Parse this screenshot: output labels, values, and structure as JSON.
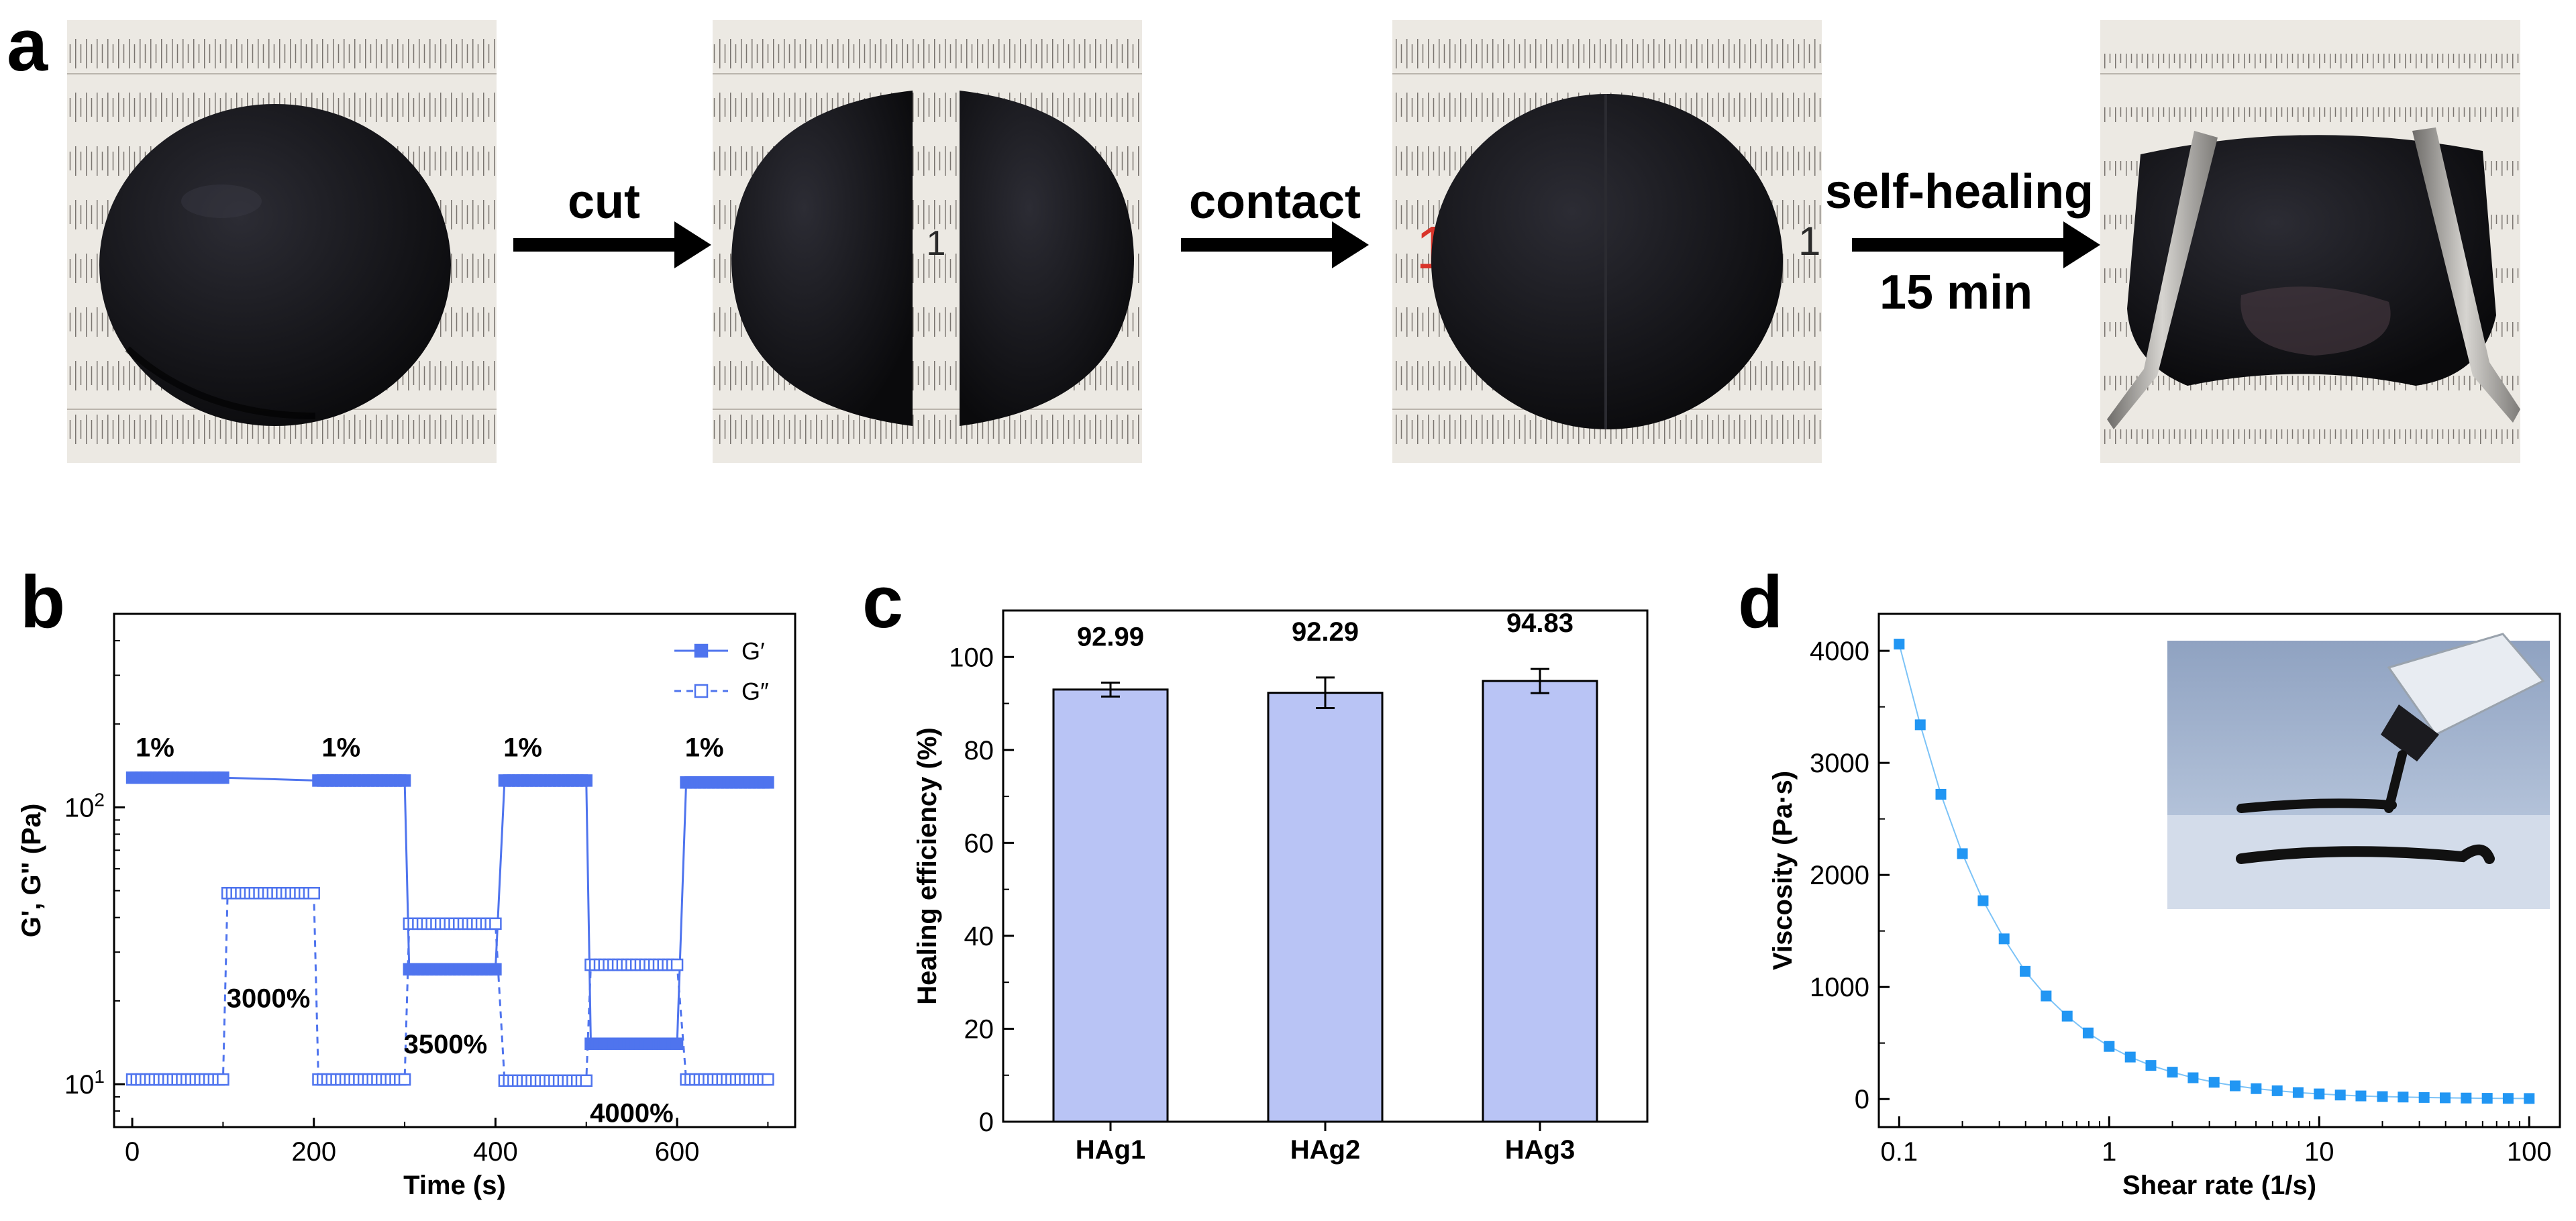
{
  "panel_a": {
    "letter": "a",
    "arrows": [
      {
        "lines": [
          "cut"
        ]
      },
      {
        "lines": [
          "contact"
        ]
      },
      {
        "lines": [
          "self-healing",
          "15 min"
        ]
      }
    ],
    "photos": [
      {
        "desc": "whole-disc-photo",
        "ruler_mark": ""
      },
      {
        "desc": "cut-halves-photo",
        "ruler_mark": "1"
      },
      {
        "desc": "rejoined-disc-photo",
        "ruler_mark": "1"
      },
      {
        "desc": "stretched-healed-photo",
        "ruler_mark": ""
      }
    ],
    "colors": {
      "hydrogel": "#141418",
      "ruler": "#ece9e3",
      "tweezer": "#8c8a86"
    }
  },
  "chart_data": [
    {
      "panel": "b",
      "type": "line",
      "xlabel": "Time (s)",
      "ylabel": "G', G\" (Pa)",
      "xlim": [
        -20,
        730
      ],
      "xticks": [
        "0",
        "200",
        "400",
        "600"
      ],
      "yscale": "log",
      "ylim": [
        7,
        500
      ],
      "yticks": [
        "10¹",
        "10²"
      ],
      "legend": "top-right",
      "series": [
        {
          "name": "G′",
          "style": "solid-filled-square",
          "color": "#4f74ee",
          "segments": [
            {
              "t": [
                0,
                100
              ],
              "value": 128
            },
            {
              "t": [
                205,
                300
              ],
              "value": 125
            },
            {
              "t": [
                305,
                400
              ],
              "value": 26
            },
            {
              "t": [
                410,
                500
              ],
              "value": 125
            },
            {
              "t": [
                505,
                600
              ],
              "value": 14
            },
            {
              "t": [
                610,
                700
              ],
              "value": 123
            }
          ]
        },
        {
          "name": "G″",
          "style": "dashed-open-square",
          "color": "#4f74ee",
          "segments": [
            {
              "t": [
                0,
                100
              ],
              "value": 10.4
            },
            {
              "t": [
                105,
                200
              ],
              "value": 49
            },
            {
              "t": [
                205,
                300
              ],
              "value": 10.4
            },
            {
              "t": [
                305,
                400
              ],
              "value": 38
            },
            {
              "t": [
                410,
                500
              ],
              "value": 10.3
            },
            {
              "t": [
                505,
                600
              ],
              "value": 27
            },
            {
              "t": [
                610,
                700
              ],
              "value": 10.4
            }
          ]
        }
      ],
      "annotations": [
        {
          "text": "1%",
          "x": 25,
          "y": 165
        },
        {
          "text": "1%",
          "x": 230,
          "y": 165
        },
        {
          "text": "1%",
          "x": 430,
          "y": 165
        },
        {
          "text": "1%",
          "x": 630,
          "y": 165
        },
        {
          "text": "3000%",
          "x": 150,
          "y": 20.5
        },
        {
          "text": "3500%",
          "x": 345,
          "y": 14
        },
        {
          "text": "4000%",
          "x": 550,
          "y": 7.9
        }
      ]
    },
    {
      "panel": "c",
      "type": "bar",
      "xlabel": "",
      "ylabel": "Healing efficiency (%)",
      "categories": [
        "HAg1",
        "HAg2",
        "HAg3"
      ],
      "values": [
        92.99,
        92.29,
        94.83
      ],
      "errors": [
        1.5,
        3.3,
        2.6
      ],
      "value_labels": [
        "92.99",
        "92.29",
        "94.83"
      ],
      "ylim": [
        0,
        110
      ],
      "yticks": [
        "0",
        "20",
        "40",
        "60",
        "80",
        "100"
      ],
      "color": "#b9c4f5"
    },
    {
      "panel": "d",
      "type": "scatter",
      "xlabel": "Shear rate (1/s)",
      "ylabel": "Viscosity (Pa·s)",
      "xscale": "log",
      "xlim": [
        0.08,
        140
      ],
      "xticks": [
        "0.1",
        "1",
        "10",
        "100"
      ],
      "ylim": [
        -250,
        4330
      ],
      "yticks": [
        "0",
        "1000",
        "2000",
        "3000",
        "4000"
      ],
      "color": "#2196f3",
      "x": [
        0.1,
        0.126,
        0.158,
        0.2,
        0.251,
        0.316,
        0.398,
        0.501,
        0.631,
        0.794,
        1.0,
        1.26,
        1.58,
        2.0,
        2.51,
        3.16,
        3.98,
        5.01,
        6.31,
        7.94,
        10.0,
        12.6,
        15.8,
        20.0,
        25.1,
        31.6,
        39.8,
        50.1,
        63.1,
        79.4,
        100
      ],
      "y": [
        4060,
        3340,
        2720,
        2190,
        1770,
        1430,
        1140,
        920,
        740,
        590,
        470,
        375,
        300,
        240,
        190,
        150,
        118,
        93,
        74,
        58,
        46,
        36,
        28,
        22,
        18,
        14,
        11,
        9,
        7,
        6,
        5
      ],
      "inset": "syringe-extrusion-photo"
    }
  ]
}
